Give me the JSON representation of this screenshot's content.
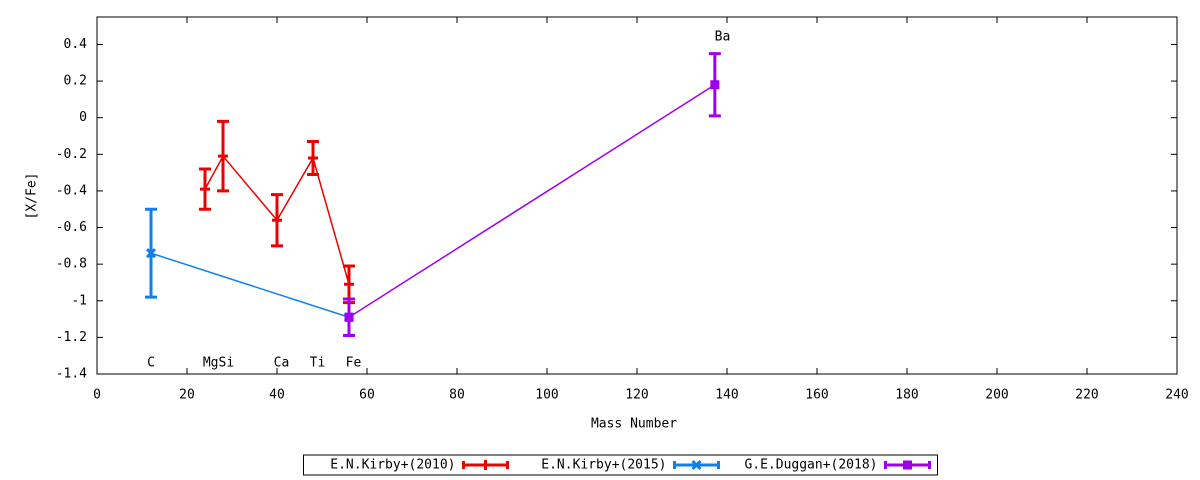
{
  "chart_data": {
    "type": "errorbar-line",
    "xlabel": "Mass Number",
    "ylabel": "[X/Fe]",
    "xlim": [
      0,
      240
    ],
    "xticks": [
      0,
      20,
      40,
      60,
      80,
      100,
      120,
      140,
      160,
      180,
      200,
      220,
      240
    ],
    "ylim": [
      -1.4,
      0.55
    ],
    "yticks": [
      -1.4,
      -1.2,
      -1,
      -0.8,
      -0.6,
      -0.4,
      -0.2,
      0,
      0.2,
      0.4
    ],
    "legend": "bottom",
    "series": [
      {
        "name": "E.N.Kirby+(2010)",
        "color": "#ee0000",
        "marker": "plus",
        "x": [
          24,
          28,
          40,
          48,
          56
        ],
        "values": [
          -0.39,
          -0.21,
          -0.56,
          -0.22,
          -0.91
        ],
        "errors": [
          0.11,
          0.19,
          0.14,
          0.09,
          0.1
        ]
      },
      {
        "name": "E.N.Kirby+(2015)",
        "color": "#1080f0",
        "marker": "cross",
        "x": [
          12,
          56
        ],
        "values": [
          -0.74,
          -1.09
        ],
        "errors": [
          0.24,
          0.1
        ]
      },
      {
        "name": "G.E.Duggan+(2018)",
        "color": "#a000f0",
        "marker": "square",
        "x": [
          56,
          137.3
        ],
        "values": [
          -1.09,
          0.18
        ],
        "errors": [
          0.1,
          0.17
        ]
      }
    ],
    "annotations": [
      {
        "text": "C",
        "x": 12,
        "y": -1.34
      },
      {
        "text": "MgSi",
        "x": 27,
        "y": -1.34
      },
      {
        "text": "Ca",
        "x": 41,
        "y": -1.34
      },
      {
        "text": "Ti",
        "x": 49,
        "y": -1.34
      },
      {
        "text": "Fe",
        "x": 57,
        "y": -1.34
      },
      {
        "text": "Ba",
        "x": 139,
        "y": 0.44
      }
    ]
  }
}
